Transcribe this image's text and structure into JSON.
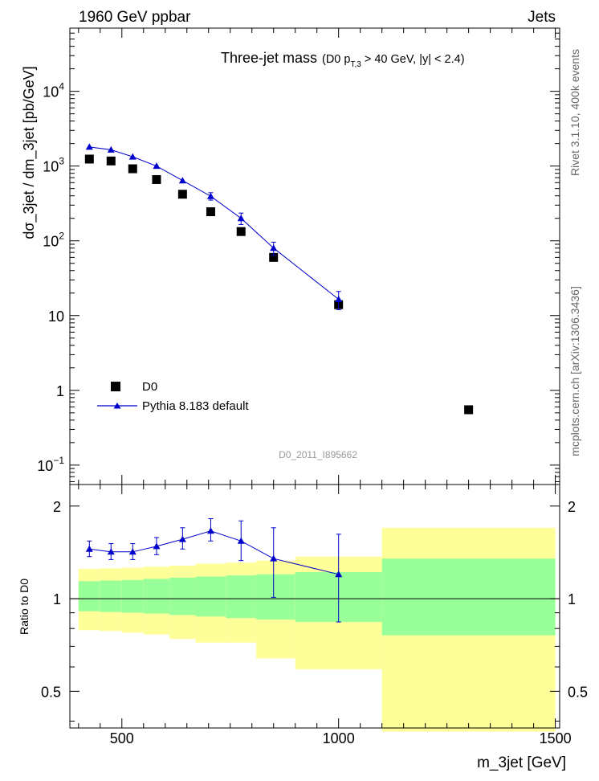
{
  "header": {
    "left": "1960 GeV ppbar",
    "right": "Jets"
  },
  "side_labels": {
    "rivet": "Rivet 3.1.10,  400k events",
    "mcplots": "mcplots.cern.ch [arXiv:1306.3436]"
  },
  "chart_data": [
    {
      "type": "scatter",
      "title": "Three-jet mass",
      "subtitle": {
        "prefix": "(D0 p",
        "sub": "T,3",
        "suffix": " > 40 GeV, |y| < 2.4)"
      },
      "watermark": "D0_2011_I895662",
      "ylabel": "dσ_3jet / dm_3jet [pb/GeV]",
      "xlabel": "m_3jet [GeV]",
      "xlim": [
        380,
        1510
      ],
      "ylim": [
        0.055,
        70000
      ],
      "yscale": "log",
      "yticks": [
        {
          "value": 0.1,
          "base": "10",
          "exp": "−1"
        },
        {
          "value": 1,
          "base": "1",
          "exp": ""
        },
        {
          "value": 10,
          "base": "10",
          "exp": ""
        },
        {
          "value": 100,
          "base": "10",
          "exp": "2"
        },
        {
          "value": 1000,
          "base": "10",
          "exp": "3"
        },
        {
          "value": 10000,
          "base": "10",
          "exp": "4"
        }
      ],
      "legend": {
        "position": "bottom-left",
        "entries": [
          {
            "label": "D0",
            "marker": "square",
            "color": "#000000"
          },
          {
            "label": "Pythia 8.183 default",
            "marker": "triangle",
            "color": "#0000cc"
          }
        ]
      },
      "series": [
        {
          "name": "D0",
          "x": [
            425,
            475,
            525,
            580,
            640,
            705,
            775,
            850,
            1000,
            1300
          ],
          "y": [
            1240,
            1170,
            920,
            660,
            420,
            245,
            133,
            60,
            14,
            0.55
          ]
        },
        {
          "name": "Pythia 8.183 default",
          "x": [
            425,
            475,
            525,
            580,
            640,
            705,
            775,
            850,
            1000
          ],
          "y": [
            1800,
            1650,
            1330,
            1000,
            640,
            395,
            200,
            80,
            16.5
          ],
          "yerr": [
            60,
            60,
            55,
            50,
            45,
            45,
            35,
            16,
            4.5
          ]
        }
      ]
    },
    {
      "type": "line",
      "ylabel": "Ratio to D0",
      "xlabel": "m_3jet [GeV]",
      "xlim": [
        380,
        1510
      ],
      "ylim": [
        0.38,
        2.35
      ],
      "yscale": "log",
      "xticks": [
        500,
        1000,
        1500
      ],
      "yticks": [
        0.5,
        1,
        2
      ],
      "reference_line": 1,
      "uncertainty_bands": {
        "bin_edges": [
          400,
          450,
          500,
          550,
          610,
          670,
          740,
          810,
          900,
          1100,
          1500
        ],
        "inner_low": [
          0.91,
          0.905,
          0.9,
          0.895,
          0.885,
          0.875,
          0.865,
          0.855,
          0.84,
          0.76
        ],
        "inner_high": [
          1.14,
          1.145,
          1.15,
          1.16,
          1.17,
          1.18,
          1.19,
          1.2,
          1.22,
          1.35
        ],
        "outer_low": [
          0.79,
          0.785,
          0.775,
          0.765,
          0.74,
          0.72,
          0.72,
          0.64,
          0.59,
          0.37
        ],
        "outer_high": [
          1.25,
          1.255,
          1.26,
          1.27,
          1.28,
          1.3,
          1.31,
          1.33,
          1.37,
          1.7
        ]
      },
      "series": [
        {
          "name": "Pythia 8.183 default",
          "x": [
            425,
            475,
            525,
            580,
            640,
            705,
            775,
            850,
            1000
          ],
          "y": [
            1.45,
            1.42,
            1.42,
            1.48,
            1.56,
            1.66,
            1.54,
            1.35,
            1.2
          ],
          "yerr_low": [
            0.08,
            0.08,
            0.08,
            0.09,
            0.11,
            0.12,
            0.21,
            0.34,
            0.36
          ],
          "yerr_high": [
            0.09,
            0.09,
            0.09,
            0.1,
            0.14,
            0.16,
            0.25,
            0.35,
            0.42
          ]
        }
      ]
    }
  ]
}
